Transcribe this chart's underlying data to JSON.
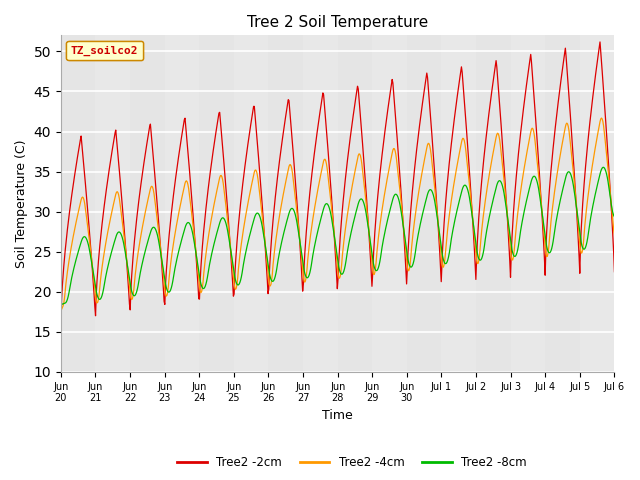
{
  "title": "Tree 2 Soil Temperature",
  "xlabel": "Time",
  "ylabel": "Soil Temperature (C)",
  "ylim": [
    10,
    52
  ],
  "yticks": [
    10,
    15,
    20,
    25,
    30,
    35,
    40,
    45,
    50
  ],
  "legend_label": "TZ_soilco2",
  "series_labels": [
    "Tree2 -2cm",
    "Tree2 -4cm",
    "Tree2 -8cm"
  ],
  "series_colors": [
    "#dd0000",
    "#ff9900",
    "#00bb00"
  ],
  "bg_color": "#e8e8e8",
  "tick_labels": [
    "Jun\n20",
    "Jun\n21",
    "Jun\n22",
    "Jun\n23",
    "Jun\n24",
    "Jun\n25",
    "Jun\n26",
    "Jun\n27",
    "Jun\n28",
    "Jun\n29",
    "Jun\n30",
    "Jul 1",
    "Jul 2",
    "Jul 3",
    "Jul 4",
    "Jul 5",
    "Jul 6"
  ],
  "figsize": [
    6.4,
    4.8
  ],
  "dpi": 100
}
